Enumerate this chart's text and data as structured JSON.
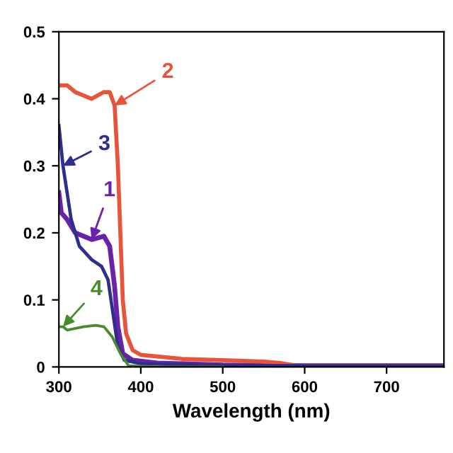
{
  "chart_data": {
    "type": "line",
    "xlabel": "Wavelength (nm)",
    "xlim": [
      300,
      770
    ],
    "xticks": [
      300,
      400,
      500,
      600,
      700
    ],
    "ylim": [
      0,
      0.5
    ],
    "yticks": [
      0,
      0.1,
      0.2,
      0.3,
      0.4,
      0.5
    ],
    "grid": false,
    "legend": false,
    "series": [
      {
        "name": "1",
        "color": "#6a22a8",
        "x": [
          300,
          303,
          310,
          320,
          340,
          355,
          362,
          368,
          372,
          378,
          390,
          420,
          500,
          600,
          770
        ],
        "values": [
          0.26,
          0.23,
          0.22,
          0.2,
          0.19,
          0.195,
          0.18,
          0.12,
          0.06,
          0.02,
          0.01,
          0.006,
          0.003,
          0.002,
          0.002
        ]
      },
      {
        "name": "2",
        "color": "#e8543a",
        "x": [
          300,
          310,
          320,
          340,
          355,
          362,
          368,
          372,
          375,
          378,
          382,
          390,
          400,
          450,
          500,
          550,
          570,
          590,
          650,
          770
        ],
        "values": [
          0.42,
          0.42,
          0.41,
          0.4,
          0.41,
          0.41,
          0.39,
          0.3,
          0.2,
          0.1,
          0.05,
          0.025,
          0.018,
          0.012,
          0.01,
          0.008,
          0.006,
          0.002,
          0.002,
          0.002
        ]
      },
      {
        "name": "3",
        "color": "#2e2e8c",
        "x": [
          300,
          305,
          315,
          325,
          340,
          352,
          360,
          366,
          372,
          380,
          400,
          500,
          770
        ],
        "values": [
          0.36,
          0.3,
          0.22,
          0.18,
          0.16,
          0.15,
          0.13,
          0.08,
          0.03,
          0.01,
          0.005,
          0.002,
          0.002
        ]
      },
      {
        "name": "4",
        "color": "#4a8a30",
        "x": [
          300,
          305,
          310,
          330,
          345,
          355,
          365,
          375,
          385,
          420,
          500
        ],
        "values": [
          0.06,
          0.06,
          0.055,
          0.06,
          0.062,
          0.06,
          0.045,
          0.02,
          0.002,
          0,
          0
        ]
      }
    ]
  }
}
